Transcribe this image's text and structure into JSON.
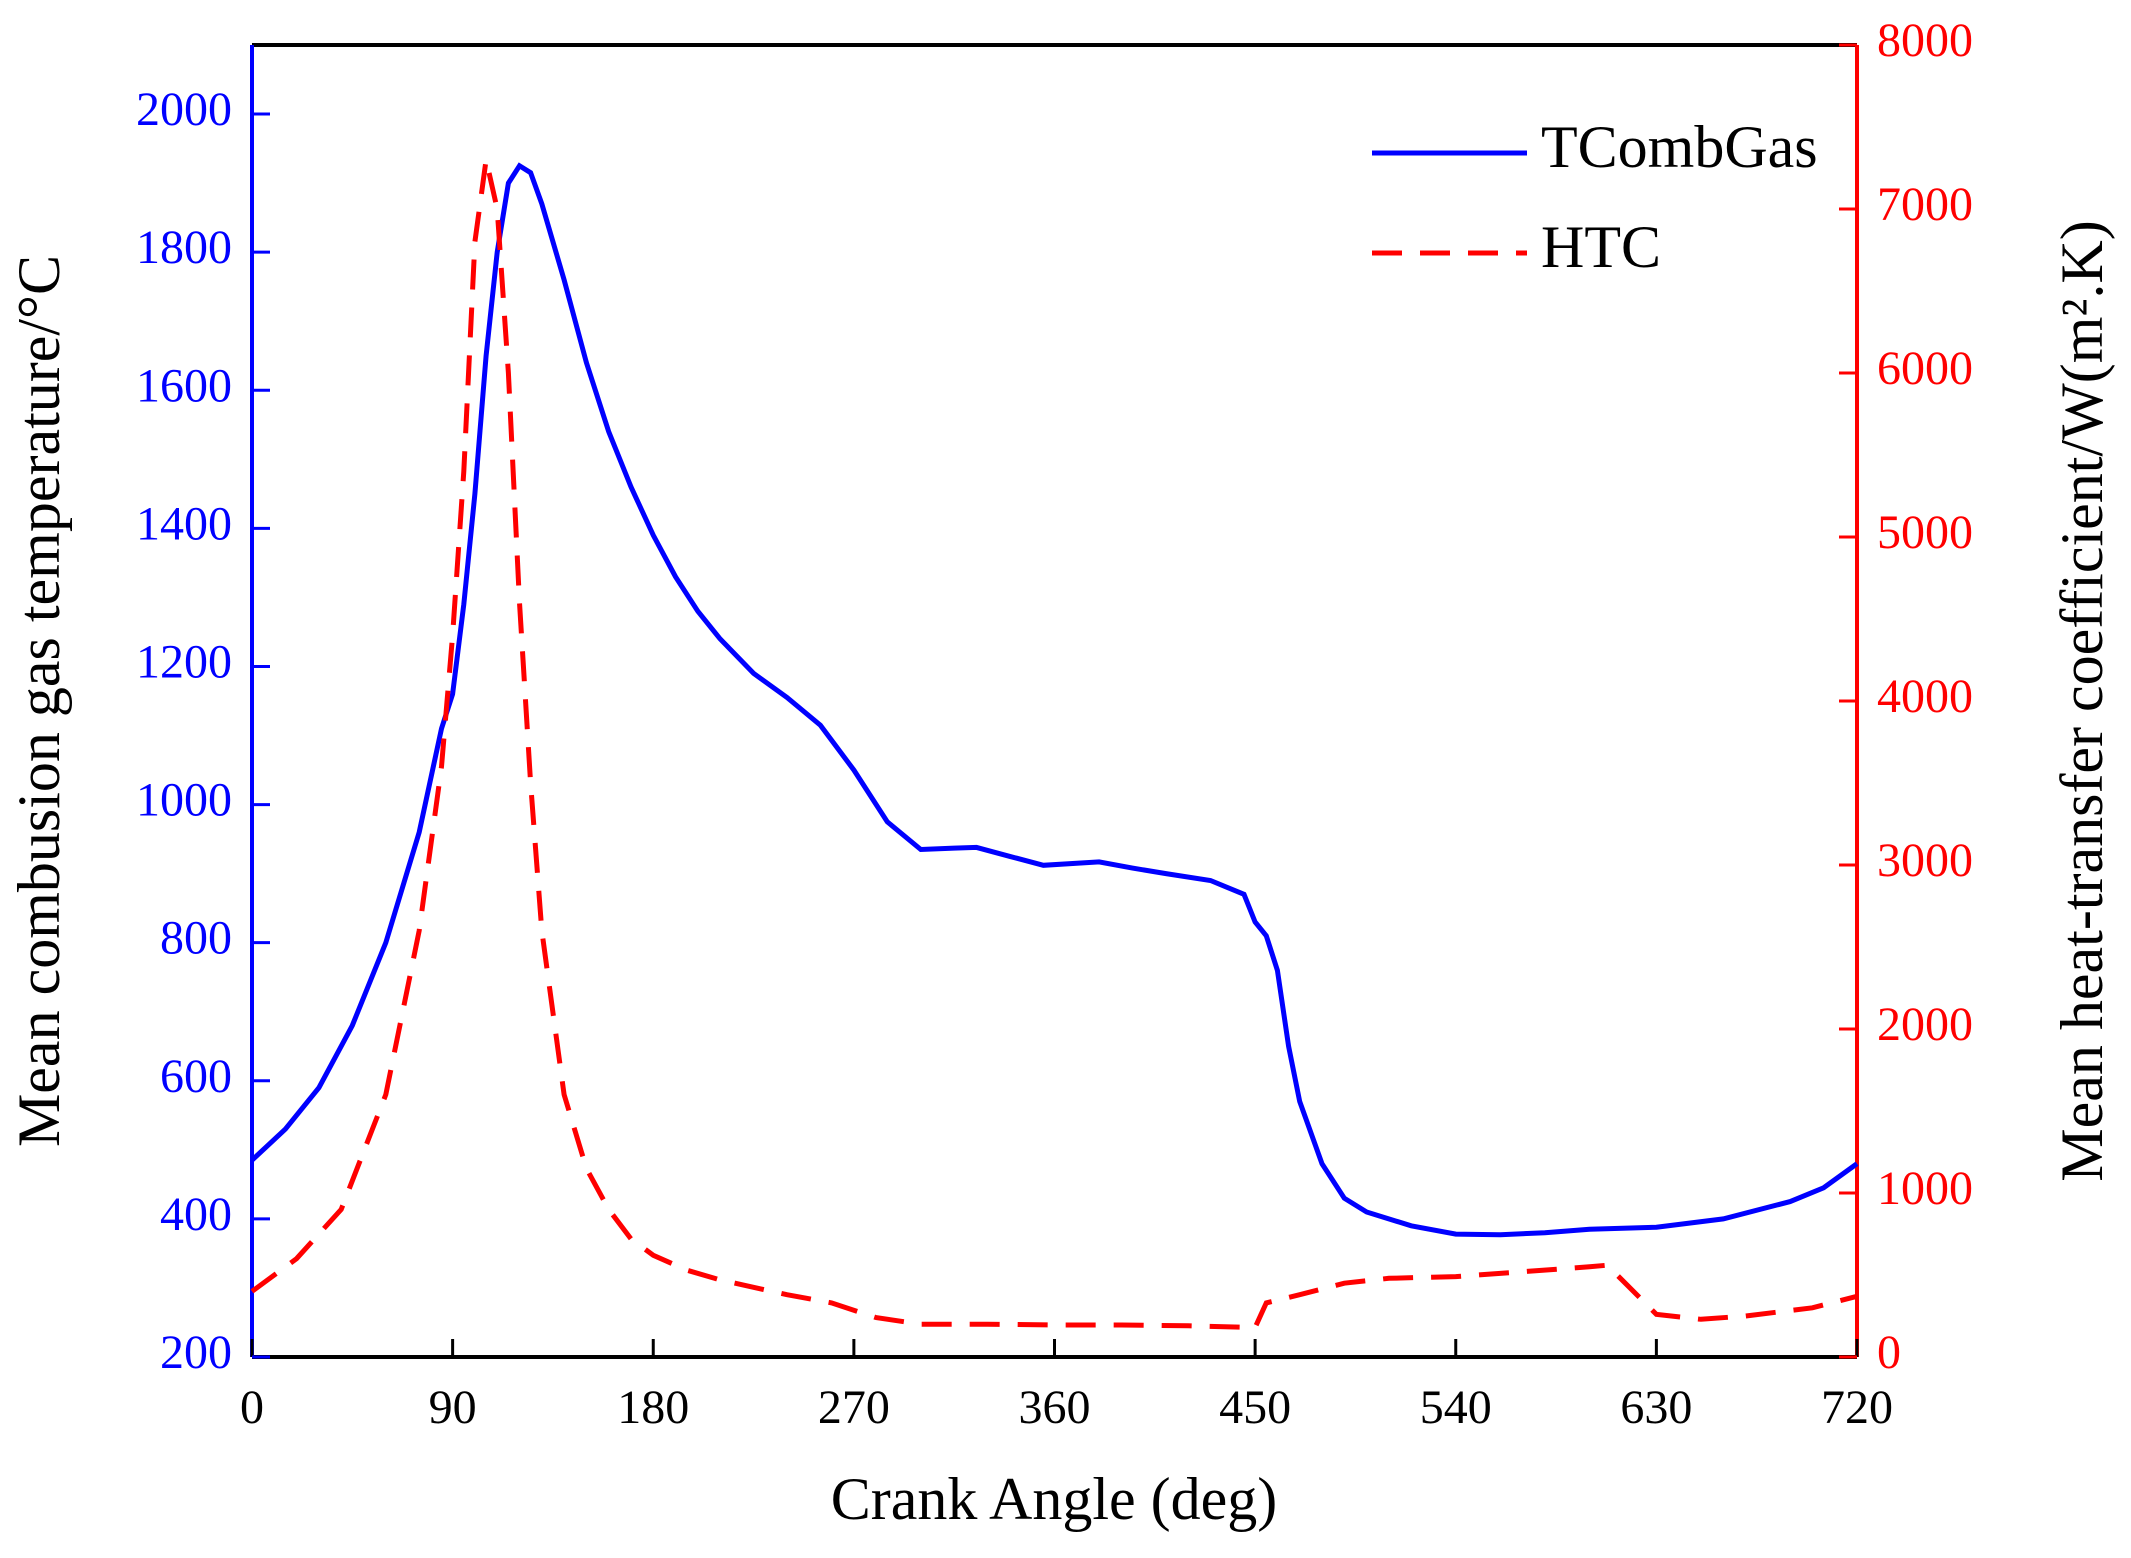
{
  "chart_data": {
    "type": "line",
    "xlabel": "Crank Angle (deg)",
    "ylabel": "Mean combusion gas temperature/°C",
    "y2label": "Mean heat-transfer coefficient/W(m².K)",
    "xlim": [
      0,
      720
    ],
    "xticks": [
      0,
      90,
      180,
      270,
      360,
      450,
      540,
      630,
      720
    ],
    "ylim": [
      200,
      2100
    ],
    "yticks": [
      200,
      400,
      600,
      800,
      1000,
      1200,
      1400,
      1600,
      1800,
      2000
    ],
    "y2lim": [
      0,
      8000
    ],
    "y2ticks": [
      0,
      1000,
      2000,
      3000,
      4000,
      5000,
      6000,
      7000,
      8000
    ],
    "legend": "upper right",
    "series": [
      {
        "name": "TCombGas",
        "color": "#0000ff",
        "dash": "solid",
        "x": [
          0,
          15,
          30,
          45,
          60,
          75,
          85,
          90,
          95,
          100,
          105,
          110,
          115,
          120,
          125,
          130,
          140,
          150,
          160,
          170,
          180,
          190,
          200,
          210,
          225,
          240,
          255,
          270,
          285,
          300,
          315,
          325,
          340,
          355,
          370,
          380,
          395,
          410,
          430,
          445,
          450,
          455,
          460,
          465,
          470,
          480,
          490,
          500,
          520,
          540,
          560,
          580,
          600,
          630,
          660,
          690,
          705,
          720
        ],
        "values": [
          485,
          530,
          590,
          680,
          800,
          960,
          1110,
          1160,
          1290,
          1450,
          1650,
          1800,
          1900,
          1925,
          1915,
          1870,
          1760,
          1640,
          1540,
          1460,
          1390,
          1330,
          1280,
          1240,
          1190,
          1155,
          1115,
          1050,
          975,
          935,
          937,
          938,
          925,
          912,
          915,
          917,
          908,
          900,
          890,
          870,
          830,
          810,
          760,
          650,
          570,
          480,
          430,
          410,
          390,
          378,
          377,
          380,
          385,
          388,
          400,
          425,
          445,
          480
        ]
      },
      {
        "name": "HTC",
        "color": "#ff0000",
        "dash": "dashed",
        "axis": "y2",
        "x": [
          0,
          20,
          40,
          60,
          75,
          85,
          90,
          95,
          100,
          105,
          110,
          115,
          120,
          125,
          130,
          140,
          150,
          160,
          170,
          180,
          195,
          210,
          240,
          260,
          280,
          300,
          330,
          360,
          390,
          420,
          450,
          455,
          470,
          490,
          510,
          540,
          570,
          600,
          608,
          630,
          650,
          670,
          700,
          720
        ],
        "values": [
          400,
          600,
          900,
          1600,
          2600,
          3600,
          4400,
          5400,
          6800,
          7300,
          7000,
          6000,
          4600,
          3500,
          2600,
          1600,
          1150,
          900,
          720,
          620,
          530,
          470,
          380,
          330,
          240,
          200,
          200,
          195,
          195,
          190,
          180,
          330,
          380,
          450,
          480,
          490,
          520,
          550,
          560,
          260,
          230,
          250,
          300,
          370
        ]
      }
    ]
  }
}
